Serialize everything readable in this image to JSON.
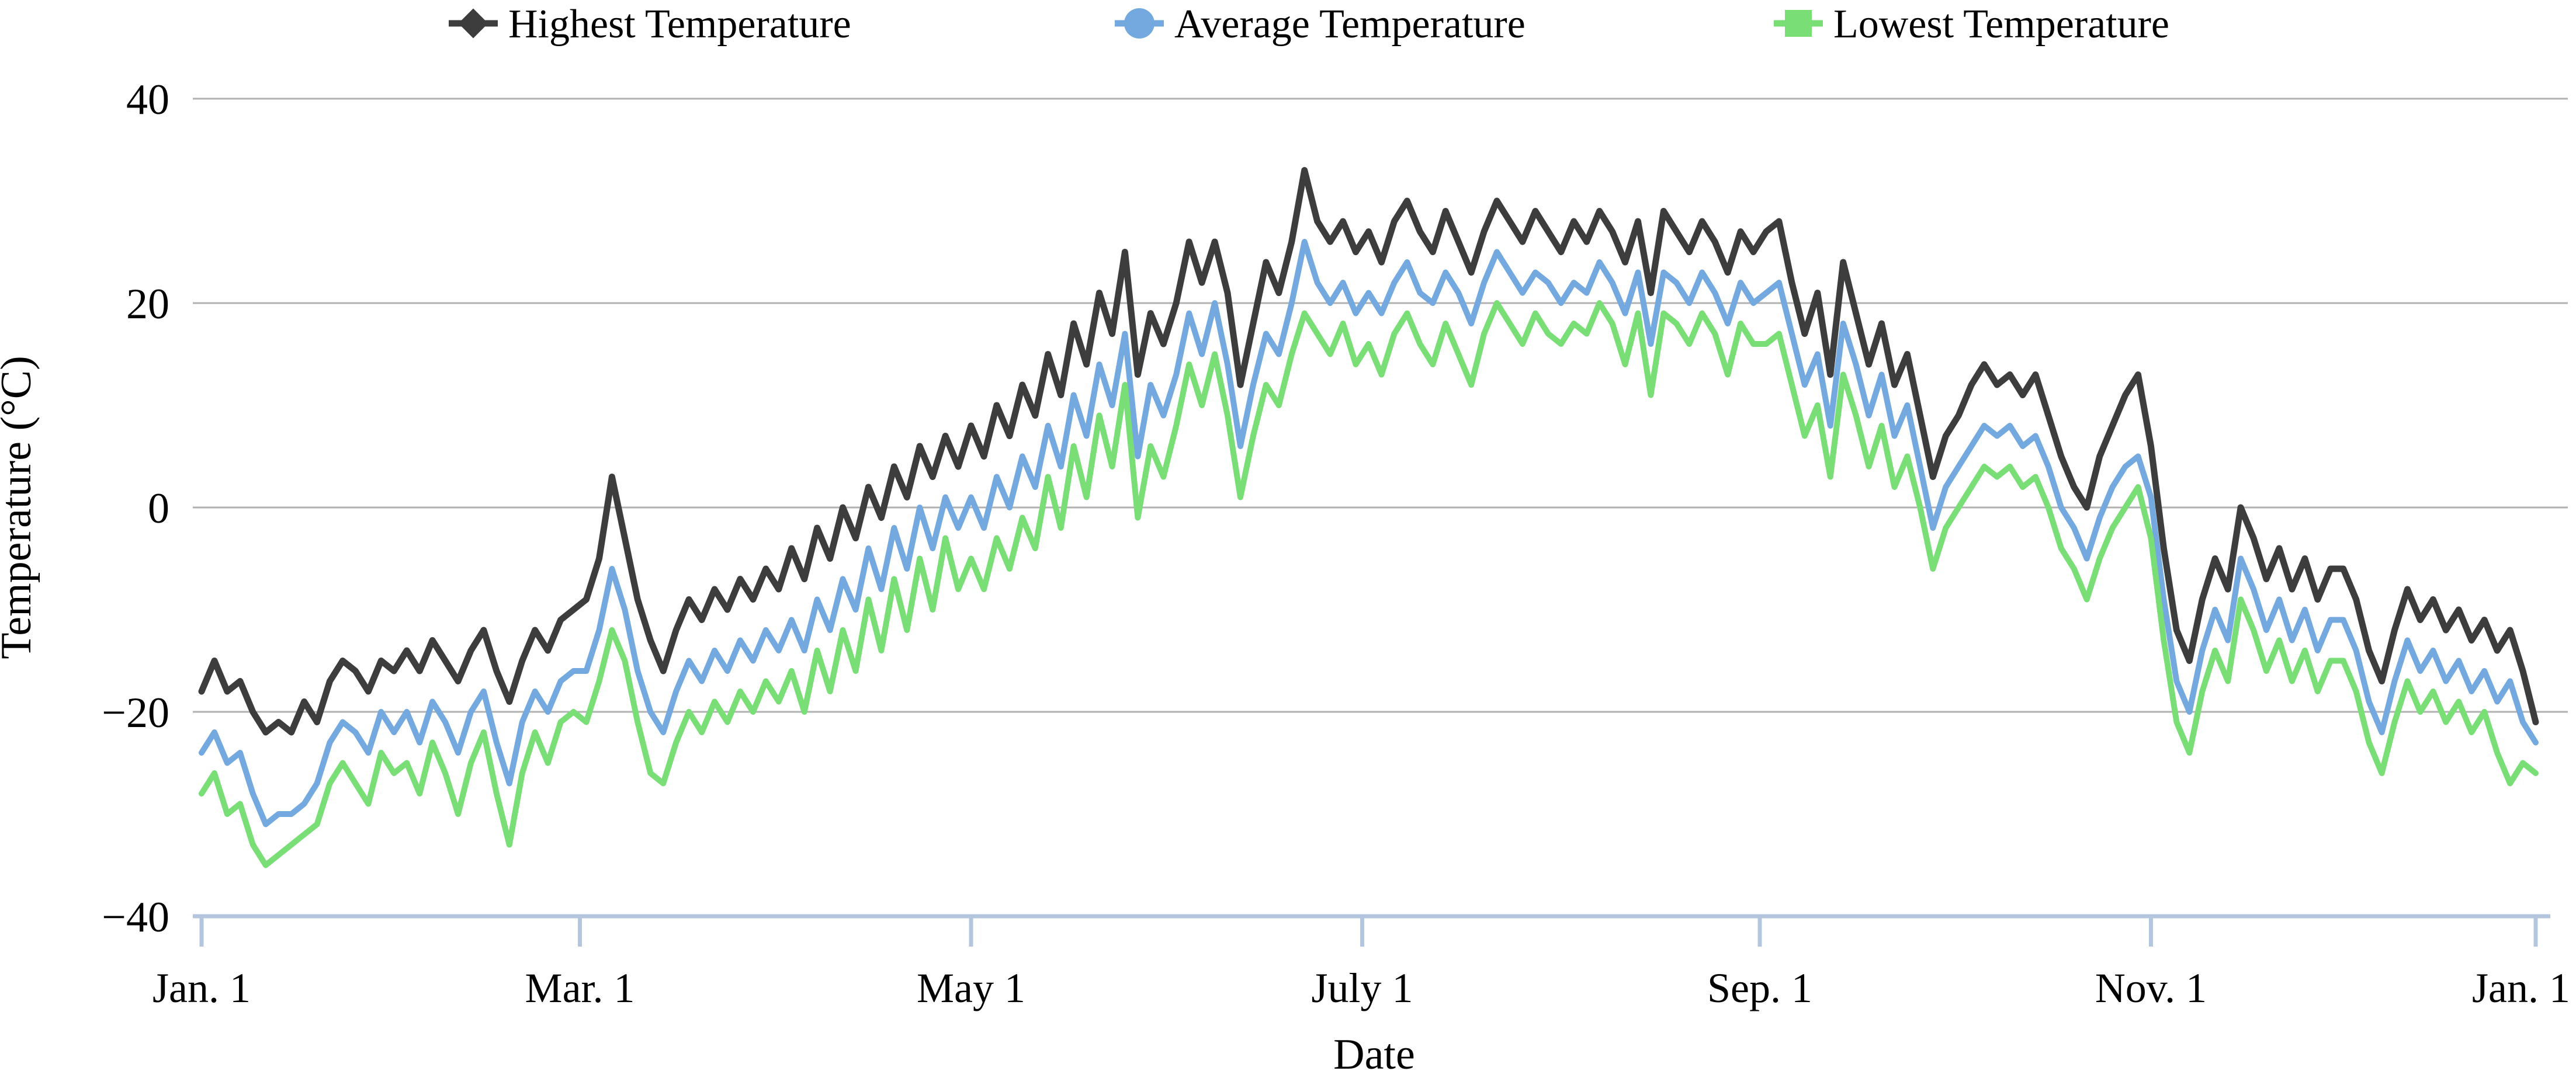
{
  "chart_data": {
    "type": "line",
    "title": "",
    "xlabel": "Date",
    "ylabel": "Temperature (°C)",
    "ylim": [
      -40,
      40
    ],
    "y_ticks": [
      40,
      20,
      0,
      -20,
      -40
    ],
    "y_tick_labels": [
      "40",
      "20",
      "0",
      "−20",
      "−40"
    ],
    "x_tick_days": [
      1,
      60,
      121,
      182,
      244,
      305,
      365
    ],
    "x_tick_labels": [
      "Jan. 1",
      "Mar. 1",
      "May 1",
      "July 1",
      "Sep. 1",
      "Nov. 1",
      "Jan. 1"
    ],
    "grid": "horizontal",
    "legend_position": "top",
    "sample_interval_days": 2,
    "start_day": 1,
    "style": {
      "grid_color": "#b1b1b1",
      "axis_color": "#b4c6de",
      "text_color": "#000000",
      "background": "#ffffff"
    },
    "series": [
      {
        "name": "Highest Temperature",
        "color": "#3d3d3d",
        "marker": "diamond",
        "line_width": 11,
        "values": [
          -18,
          -15,
          -18,
          -17,
          -20,
          -22,
          -21,
          -22,
          -19,
          -21,
          -17,
          -15,
          -16,
          -18,
          -15,
          -16,
          -14,
          -16,
          -13,
          -15,
          -17,
          -14,
          -12,
          -16,
          -19,
          -15,
          -12,
          -14,
          -11,
          -10,
          -9,
          -5,
          3,
          -3,
          -9,
          -13,
          -16,
          -12,
          -9,
          -11,
          -8,
          -10,
          -7,
          -9,
          -6,
          -8,
          -4,
          -7,
          -2,
          -5,
          0,
          -3,
          2,
          -1,
          4,
          1,
          6,
          3,
          7,
          4,
          8,
          5,
          10,
          7,
          12,
          9,
          15,
          11,
          18,
          14,
          21,
          17,
          25,
          13,
          19,
          16,
          20,
          26,
          22,
          26,
          21,
          12,
          18,
          24,
          21,
          26,
          33,
          28,
          26,
          28,
          25,
          27,
          24,
          28,
          30,
          27,
          25,
          29,
          26,
          23,
          27,
          30,
          28,
          26,
          29,
          27,
          25,
          28,
          26,
          29,
          27,
          24,
          28,
          21,
          29,
          27,
          25,
          28,
          26,
          23,
          27,
          25,
          27,
          28,
          22,
          17,
          21,
          13,
          24,
          19,
          14,
          18,
          12,
          15,
          9,
          3,
          7,
          9,
          12,
          14,
          12,
          13,
          11,
          13,
          9,
          5,
          2,
          0,
          5,
          8,
          11,
          13,
          6,
          -4,
          -12,
          -15,
          -9,
          -5,
          -8,
          0,
          -3,
          -7,
          -4,
          -8,
          -5,
          -9,
          -6,
          -6,
          -9,
          -14,
          -17,
          -12,
          -8,
          -11,
          -9,
          -12,
          -10,
          -13,
          -11,
          -14,
          -12,
          -16,
          -21
        ]
      },
      {
        "name": "Average Temperature",
        "color": "#74a9e0",
        "marker": "circle",
        "line_width": 10,
        "values": [
          -24,
          -22,
          -25,
          -24,
          -28,
          -31,
          -30,
          -30,
          -29,
          -27,
          -23,
          -21,
          -22,
          -24,
          -20,
          -22,
          -20,
          -23,
          -19,
          -21,
          -24,
          -20,
          -18,
          -23,
          -27,
          -21,
          -18,
          -20,
          -17,
          -16,
          -16,
          -12,
          -6,
          -10,
          -16,
          -20,
          -22,
          -18,
          -15,
          -17,
          -14,
          -16,
          -13,
          -15,
          -12,
          -14,
          -11,
          -14,
          -9,
          -12,
          -7,
          -10,
          -4,
          -8,
          -2,
          -6,
          0,
          -4,
          1,
          -2,
          1,
          -2,
          3,
          0,
          5,
          2,
          8,
          4,
          11,
          7,
          14,
          10,
          17,
          5,
          12,
          9,
          13,
          19,
          15,
          20,
          14,
          6,
          12,
          17,
          15,
          20,
          26,
          22,
          20,
          22,
          19,
          21,
          19,
          22,
          24,
          21,
          20,
          23,
          21,
          18,
          22,
          25,
          23,
          21,
          23,
          22,
          20,
          22,
          21,
          24,
          22,
          19,
          23,
          16,
          23,
          22,
          20,
          23,
          21,
          18,
          22,
          20,
          21,
          22,
          17,
          12,
          15,
          8,
          18,
          14,
          9,
          13,
          7,
          10,
          4,
          -2,
          2,
          4,
          6,
          8,
          7,
          8,
          6,
          7,
          4,
          0,
          -2,
          -5,
          -1,
          2,
          4,
          5,
          1,
          -9,
          -17,
          -20,
          -14,
          -10,
          -13,
          -5,
          -8,
          -12,
          -9,
          -13,
          -10,
          -14,
          -11,
          -11,
          -14,
          -19,
          -22,
          -17,
          -13,
          -16,
          -14,
          -17,
          -15,
          -18,
          -16,
          -19,
          -17,
          -21,
          -23
        ]
      },
      {
        "name": "Lowest Temperature",
        "color": "#7ade77",
        "marker": "square",
        "line_width": 10,
        "values": [
          -28,
          -26,
          -30,
          -29,
          -33,
          -35,
          -34,
          -33,
          -32,
          -31,
          -27,
          -25,
          -27,
          -29,
          -24,
          -26,
          -25,
          -28,
          -23,
          -26,
          -30,
          -25,
          -22,
          -28,
          -33,
          -26,
          -22,
          -25,
          -21,
          -20,
          -21,
          -17,
          -12,
          -15,
          -21,
          -26,
          -27,
          -23,
          -20,
          -22,
          -19,
          -21,
          -18,
          -20,
          -17,
          -19,
          -16,
          -20,
          -14,
          -18,
          -12,
          -16,
          -9,
          -14,
          -7,
          -12,
          -5,
          -10,
          -3,
          -8,
          -5,
          -8,
          -3,
          -6,
          -1,
          -4,
          3,
          -2,
          6,
          1,
          9,
          4,
          12,
          -1,
          6,
          3,
          8,
          14,
          10,
          15,
          9,
          1,
          7,
          12,
          10,
          15,
          19,
          17,
          15,
          18,
          14,
          16,
          13,
          17,
          19,
          16,
          14,
          18,
          15,
          12,
          17,
          20,
          18,
          16,
          19,
          17,
          16,
          18,
          17,
          20,
          18,
          14,
          19,
          11,
          19,
          18,
          16,
          19,
          17,
          13,
          18,
          16,
          16,
          17,
          12,
          7,
          10,
          3,
          13,
          9,
          4,
          8,
          2,
          5,
          0,
          -6,
          -2,
          0,
          2,
          4,
          3,
          4,
          2,
          3,
          0,
          -4,
          -6,
          -9,
          -5,
          -2,
          0,
          2,
          -3,
          -13,
          -21,
          -24,
          -18,
          -14,
          -17,
          -9,
          -12,
          -16,
          -13,
          -17,
          -14,
          -18,
          -15,
          -15,
          -18,
          -23,
          -26,
          -21,
          -17,
          -20,
          -18,
          -21,
          -19,
          -22,
          -20,
          -24,
          -27,
          -25,
          -26
        ]
      }
    ]
  }
}
